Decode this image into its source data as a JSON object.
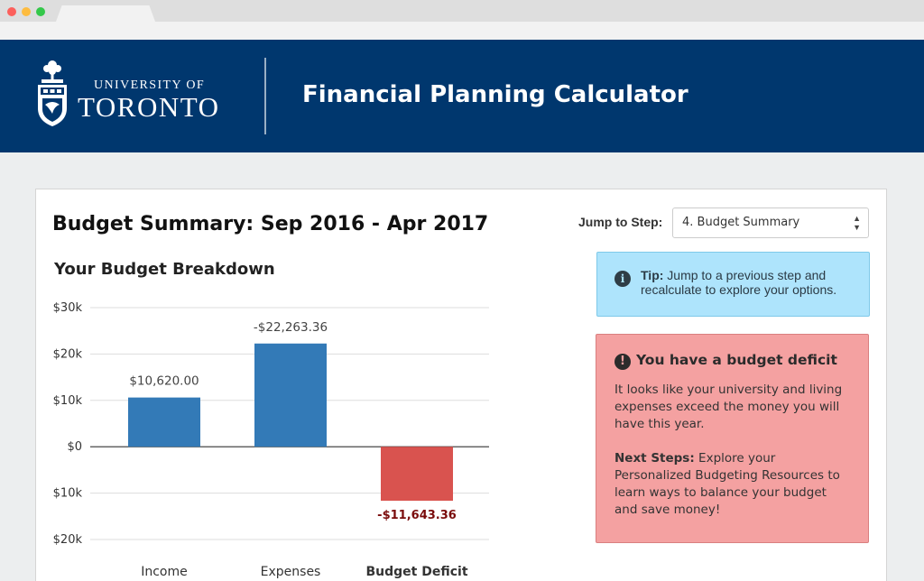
{
  "header": {
    "university_line1": "UNIVERSITY OF",
    "university_line2": "TORONTO",
    "app_title": "Financial Planning Calculator"
  },
  "main": {
    "page_title": "Budget Summary: Sep 2016 - Apr 2017",
    "section_title": "Your Budget Breakdown",
    "jump": {
      "label": "Jump to Step:",
      "selected": "4. Budget Summary"
    },
    "tip": {
      "bold": "Tip:",
      "text": "Jump to a previous step and recalculate to explore your options."
    },
    "deficit": {
      "title": "You have a budget deficit",
      "body": "It looks like your university and living expenses exceed the money you will have this year.",
      "steps_bold": "Next Steps:",
      "steps_text": "Explore your Personalized Budgeting Resources to learn ways to balance your budget and save money!"
    }
  },
  "chart_data": {
    "type": "bar",
    "categories": [
      "Income",
      "Expenses",
      "Budget Deficit"
    ],
    "values": [
      10620.0,
      22263.36,
      -11643.36
    ],
    "value_labels": [
      "$10,620.00",
      "-$22,263.36",
      "-$11,643.36"
    ],
    "bar_colors": [
      "#337ab7",
      "#337ab7",
      "#d9534f"
    ],
    "deficit_label_color": "#7a0c0c",
    "y_ticks": [
      30000,
      20000,
      10000,
      0,
      -10000,
      -20000
    ],
    "y_tick_labels": [
      "$30k",
      "$20k",
      "$10k",
      "$0",
      "$10k",
      "$20k"
    ],
    "ylim": [
      -20000,
      30000
    ],
    "grid": true,
    "highlight_category": "Budget Deficit"
  }
}
